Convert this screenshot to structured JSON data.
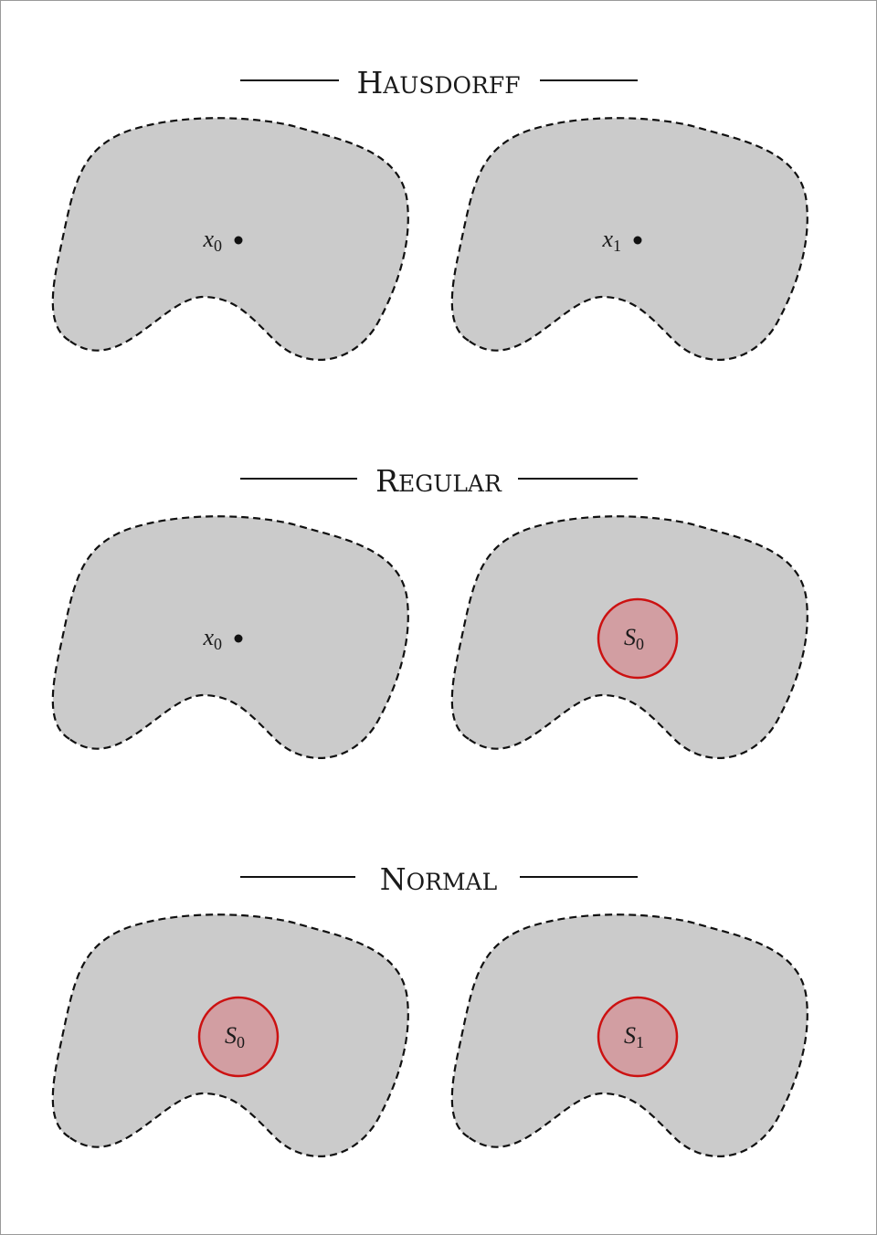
{
  "sections": [
    {
      "heading": {
        "first": "H",
        "rest": "AUSDORFF"
      },
      "shapes": [
        {
          "marker": "point",
          "symbol": "x",
          "subscript": "0"
        },
        {
          "marker": "point",
          "symbol": "x",
          "subscript": "1"
        }
      ]
    },
    {
      "heading": {
        "first": "R",
        "rest": "EGULAR"
      },
      "shapes": [
        {
          "marker": "point",
          "symbol": "x",
          "subscript": "0"
        },
        {
          "marker": "disc",
          "symbol": "S",
          "subscript": "0"
        }
      ]
    },
    {
      "heading": {
        "first": "N",
        "rest": "ORMAL"
      },
      "shapes": [
        {
          "marker": "disc",
          "symbol": "S",
          "subscript": "0"
        },
        {
          "marker": "disc",
          "symbol": "S",
          "subscript": "1"
        }
      ]
    }
  ],
  "colors": {
    "region_fill": "#cbcbcb",
    "region_border": "#111111",
    "disc_fill": "#d29ea2",
    "disc_border": "#cc1111"
  }
}
